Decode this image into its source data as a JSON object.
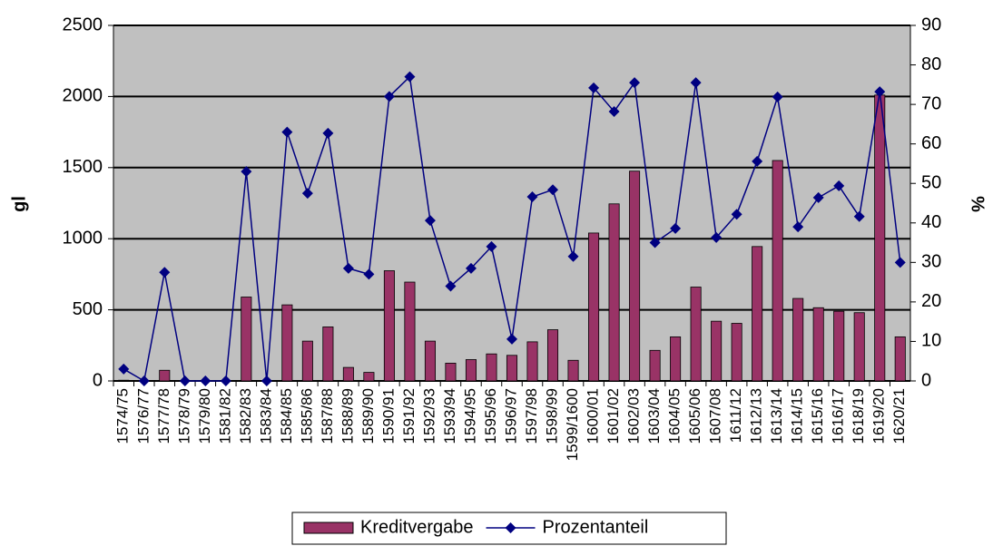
{
  "chart_data": {
    "type": "bar_line",
    "categories": [
      "1574/75",
      "1576/77",
      "1577/78",
      "1578/79",
      "1579/80",
      "1581/82",
      "1582/83",
      "1583/84",
      "1584/85",
      "1585/86",
      "1587/88",
      "1588/89",
      "1589/90",
      "1590/91",
      "1591/92",
      "1592/93",
      "1593/94",
      "1594/95",
      "1595/96",
      "1596/97",
      "1597/98",
      "1598/99",
      "1599/1600",
      "1600/01",
      "1601/02",
      "1602/03",
      "1603/04",
      "1604/05",
      "1605/06",
      "1607/08",
      "1611/12",
      "1612/13",
      "1613/14",
      "1614/15",
      "1615/16",
      "1616/17",
      "1618/19",
      "1619/20",
      "1620/21"
    ],
    "series": [
      {
        "name": "Kreditvergabe",
        "type": "bar",
        "color": "#993366",
        "values": [
          5,
          0,
          75,
          0,
          0,
          0,
          590,
          0,
          535,
          280,
          380,
          95,
          60,
          775,
          695,
          280,
          125,
          150,
          190,
          180,
          275,
          360,
          145,
          1040,
          1245,
          1475,
          215,
          310,
          660,
          420,
          405,
          945,
          1550,
          580,
          515,
          490,
          480,
          2010,
          310
        ]
      },
      {
        "name": "Prozentanteil",
        "type": "line",
        "axis": "y2",
        "color": "#000080",
        "values": [
          3,
          0,
          27.5,
          0,
          0,
          0,
          53,
          0,
          63,
          47.5,
          62.7,
          28.5,
          27,
          72,
          77,
          40.6,
          24,
          28.5,
          34,
          10.6,
          46.6,
          48.4,
          31.5,
          74.2,
          68.2,
          75.5,
          35,
          38.6,
          75.5,
          36.3,
          42.2,
          55.6,
          71.9,
          39,
          46.4,
          49.4,
          41.6,
          73.2,
          30
        ]
      }
    ],
    "ylabel": "gl",
    "y2label": "%",
    "ylim": [
      0,
      2500
    ],
    "yticks": [
      0,
      500,
      1000,
      1500,
      2000,
      2500
    ],
    "y2lim": [
      0,
      90
    ],
    "y2ticks": [
      0,
      10,
      20,
      30,
      40,
      50,
      60,
      70,
      80,
      90
    ],
    "grid": true,
    "legend": "bottom"
  }
}
